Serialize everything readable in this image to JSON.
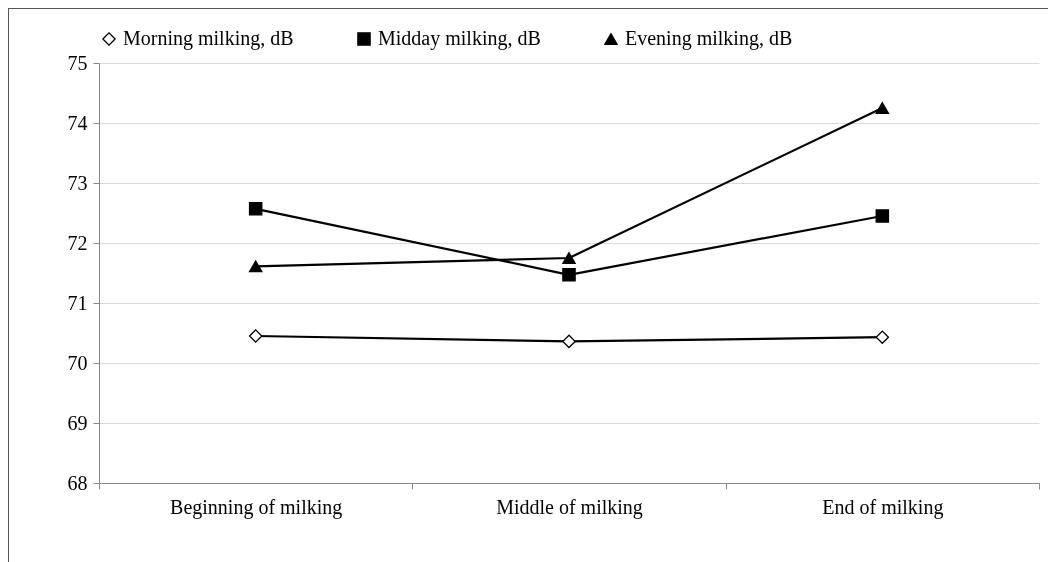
{
  "chart_data": {
    "type": "line",
    "categories": [
      "Beginning of milking",
      "Middle of milking",
      "End of milking"
    ],
    "series": [
      {
        "name": "Morning milking, dB",
        "color": "#000000",
        "marker": "diamond",
        "values": [
          70.45,
          70.36,
          70.43
        ]
      },
      {
        "name": "Midday milking, dB",
        "color": "#000000",
        "marker": "square",
        "values": [
          72.57,
          71.47,
          72.45
        ]
      },
      {
        "name": "Evening milking, dB",
        "color": "#000000",
        "marker": "triangle",
        "values": [
          71.61,
          71.75,
          74.25
        ]
      }
    ],
    "ylim": [
      68,
      75
    ],
    "yticks": [
      68,
      69,
      70,
      71,
      72,
      73,
      74,
      75
    ],
    "grid": "y",
    "legend": "top"
  }
}
